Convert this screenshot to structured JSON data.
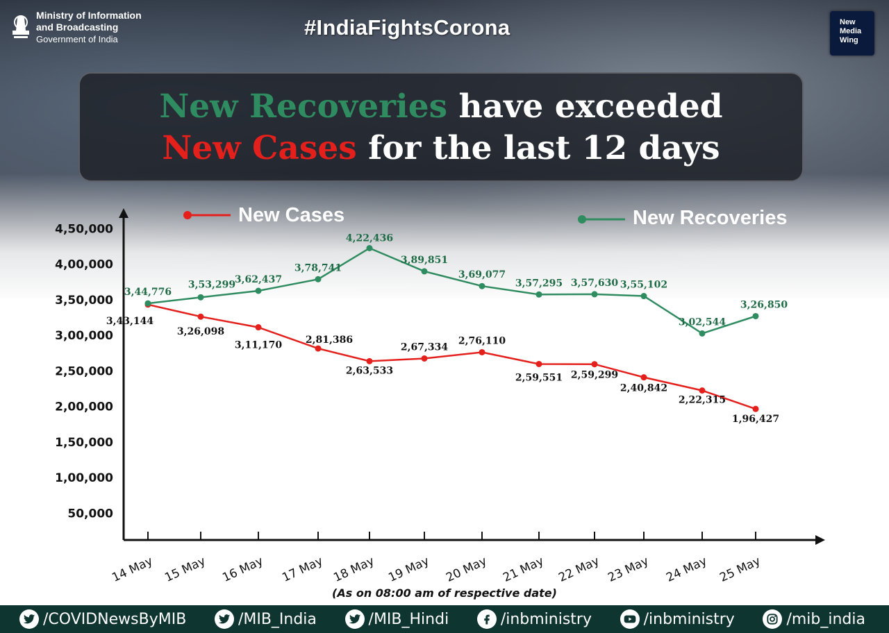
{
  "header": {
    "ministry_line1": "Ministry of Information",
    "ministry_line2": "and Broadcasting",
    "government": "Government of India",
    "hashtag": "#IndiaFightsCorona",
    "badge": [
      "New",
      "Media",
      "Wing"
    ]
  },
  "headline": {
    "part1": "New Recoveries",
    "part2": " have exceeded",
    "part3": "New Cases",
    "part4": " for the last 12 days"
  },
  "colors": {
    "cases": "#e4201d",
    "recoveries": "#2f8c60",
    "recovery_label": "#1e6b46",
    "footer_bg": "#0e3530"
  },
  "chart_data": {
    "type": "line",
    "x": [
      "14 May",
      "15 May",
      "16 May",
      "17 May",
      "18 May",
      "19 May",
      "20 May",
      "21 May",
      "22 May",
      "23 May",
      "24 May",
      "25 May"
    ],
    "series": [
      {
        "name": "New Cases",
        "values": [
          343144,
          326098,
          311170,
          281386,
          263533,
          267334,
          276110,
          259551,
          259299,
          240842,
          222315,
          196427
        ],
        "labels": [
          "3,43,144",
          "3,26,098",
          "3,11,170",
          "2,81,386",
          "2,63,533",
          "2,67,334",
          "2,76,110",
          "2,59,551",
          "2,59,299",
          "2,40,842",
          "2,22,315",
          "1,96,427"
        ]
      },
      {
        "name": "New Recoveries",
        "values": [
          344776,
          353299,
          362437,
          378741,
          422436,
          389851,
          369077,
          357295,
          357630,
          355102,
          302544,
          326850
        ],
        "labels": [
          "3,44,776",
          "3,53,299",
          "3,62,437",
          "3,78,741",
          "4,22,436",
          "3,89,851",
          "3,69,077",
          "3,57,295",
          "3,57,630",
          "3,55,102",
          "3,02,544",
          "3,26,850"
        ]
      }
    ],
    "y_ticks": [
      50000,
      100000,
      150000,
      200000,
      250000,
      300000,
      350000,
      400000,
      450000
    ],
    "y_tick_labels": [
      "50,000",
      "1,00,000",
      "1,50,000",
      "2,00,000",
      "2,50,000",
      "3,00,000",
      "3,50,000",
      "4,00,000",
      "4,50,000"
    ],
    "legend_position": "top",
    "grid": false
  },
  "note": "(As on 08:00 am of respective date)",
  "footer": {
    "items": [
      {
        "icon": "twitter-icon",
        "handle": "/COVIDNewsByMIB"
      },
      {
        "icon": "twitter-icon",
        "handle": "/MIB_India"
      },
      {
        "icon": "twitter-icon",
        "handle": "/MIB_Hindi"
      },
      {
        "icon": "facebook-icon",
        "handle": "/inbministry"
      },
      {
        "icon": "youtube-icon",
        "handle": "/inbministry"
      },
      {
        "icon": "instagram-icon",
        "handle": "/mib_india"
      }
    ]
  }
}
